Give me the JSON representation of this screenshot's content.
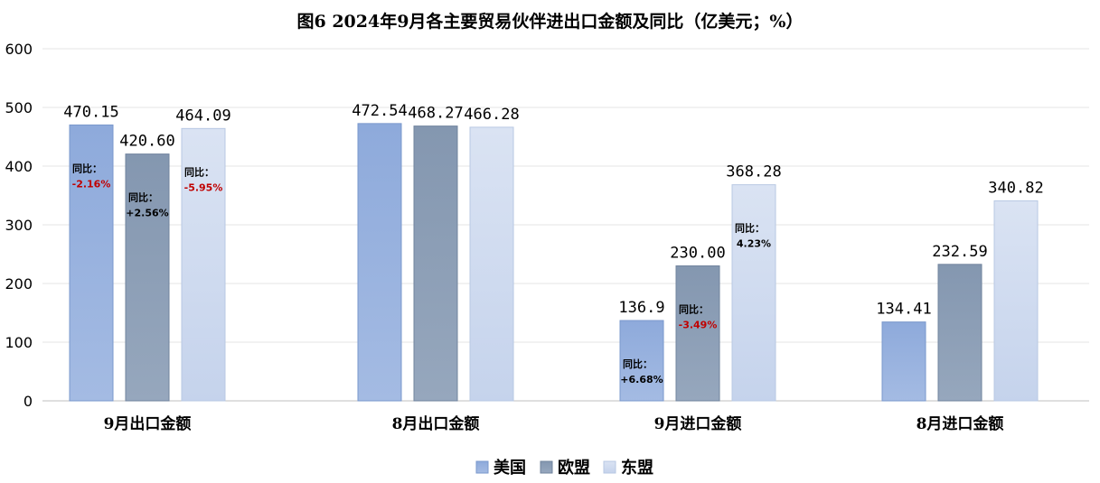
{
  "chart_data": {
    "type": "bar",
    "title": "图6 2024年9月各主要贸易伙伴进出口金额及同比（亿美元；%）",
    "categories": [
      "9月出口金额",
      "8月出口金额",
      "9月进口金额",
      "8月进口金额"
    ],
    "ylim": [
      0,
      600
    ],
    "yticks": [
      "0",
      "100",
      "200",
      "300",
      "400",
      "500",
      "600"
    ],
    "grid": true,
    "legend_position": "bottom",
    "series": [
      {
        "name": "美国",
        "color": "#8eaadb",
        "values": [
          470.15,
          472.54,
          136.9,
          134.41
        ],
        "value_labels": [
          "470.15",
          "472.54",
          "136.9",
          "134.41"
        ],
        "yoy": [
          "-2.16%",
          null,
          "+6.68%",
          null
        ]
      },
      {
        "name": "欧盟",
        "color": "#8497b0",
        "values": [
          420.6,
          468.27,
          230.0,
          232.59
        ],
        "value_labels": [
          "420.60",
          "468.27",
          "230.00",
          "232.59"
        ],
        "yoy": [
          "+2.56%",
          null,
          "-3.49%",
          null
        ]
      },
      {
        "name": "东盟",
        "color": "#dae3f3",
        "values": [
          464.09,
          466.28,
          368.28,
          340.82
        ],
        "value_labels": [
          "464.09",
          "466.28",
          "368.28",
          "340.82"
        ],
        "yoy": [
          "-5.95%",
          null,
          "4.23%",
          null
        ]
      }
    ],
    "yoy_label": "同比：",
    "negative_color": "#c00000",
    "positive_color": "#000000"
  }
}
